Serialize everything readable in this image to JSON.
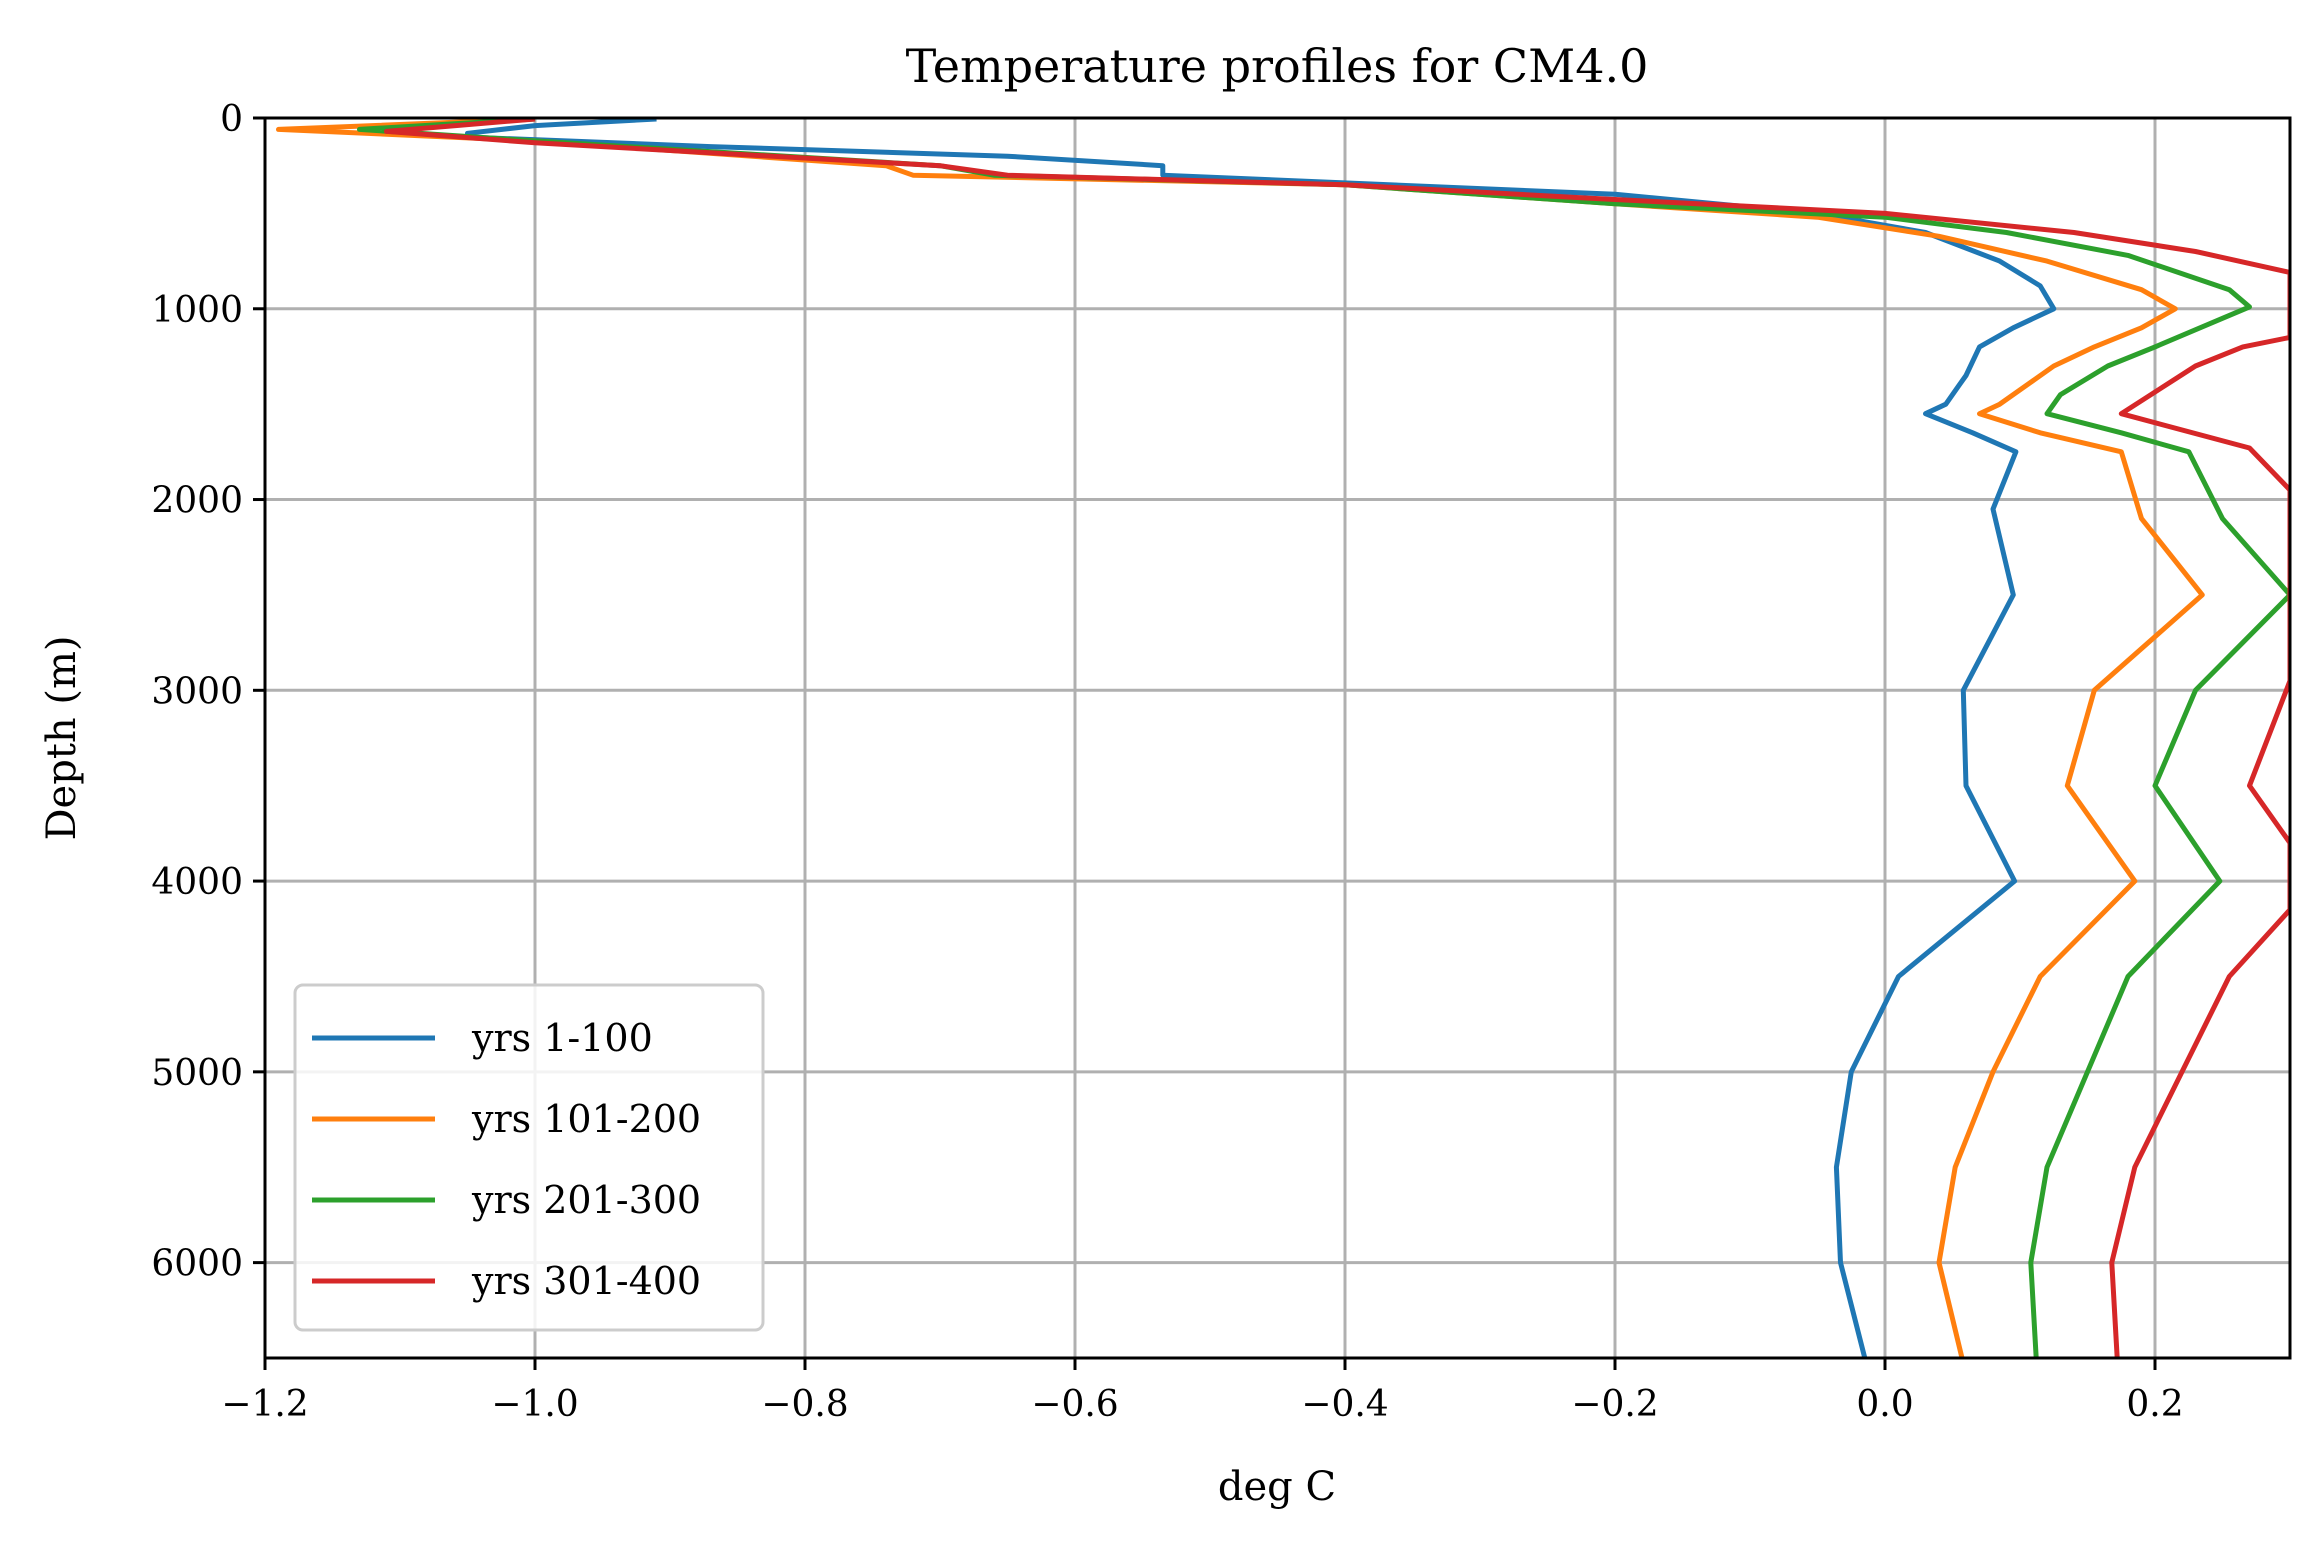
{
  "chart_data": {
    "type": "line",
    "title": "Temperature profiles for CM4.0",
    "xlabel": "deg C",
    "ylabel": "Depth (m)",
    "xlim": [
      -1.2,
      0.3
    ],
    "ylim": [
      6500,
      0
    ],
    "y_inverted": true,
    "grid": true,
    "legend_position": "lower-left",
    "x_ticks": [
      -1.2,
      -1.0,
      -0.8,
      -0.6,
      -0.4,
      -0.2,
      0.0,
      0.2
    ],
    "x_tick_labels": [
      "−1.2",
      "−1.0",
      "−0.8",
      "−0.6",
      "−0.4",
      "−0.2",
      "0.0",
      "0.2"
    ],
    "y_ticks": [
      0,
      1000,
      2000,
      3000,
      4000,
      5000,
      6000
    ],
    "y_tick_labels": [
      "0",
      "1000",
      "2000",
      "3000",
      "4000",
      "5000",
      "6000"
    ],
    "series": [
      {
        "name": "yrs 1-100",
        "color": "#1f77b4",
        "points": [
          [
            -0.91,
            5
          ],
          [
            -1.0,
            40
          ],
          [
            -1.05,
            80
          ],
          [
            -1.05,
            100
          ],
          [
            -0.87,
            150
          ],
          [
            -0.65,
            200
          ],
          [
            -0.535,
            250
          ],
          [
            -0.535,
            300
          ],
          [
            -0.2,
            400
          ],
          [
            -0.05,
            500
          ],
          [
            0.03,
            600
          ],
          [
            0.085,
            750
          ],
          [
            0.115,
            880
          ],
          [
            0.125,
            1000
          ],
          [
            0.095,
            1100
          ],
          [
            0.07,
            1200
          ],
          [
            0.06,
            1350
          ],
          [
            0.055,
            1400
          ],
          [
            0.045,
            1500
          ],
          [
            0.03,
            1550
          ],
          [
            0.065,
            1650
          ],
          [
            0.097,
            1750
          ],
          [
            0.08,
            2050
          ],
          [
            0.095,
            2500
          ],
          [
            0.058,
            3000
          ],
          [
            0.06,
            3500
          ],
          [
            0.096,
            4000
          ],
          [
            0.01,
            4500
          ],
          [
            -0.025,
            5000
          ],
          [
            -0.036,
            5500
          ],
          [
            -0.033,
            6000
          ],
          [
            -0.015,
            6500
          ]
        ]
      },
      {
        "name": "yrs 101-200",
        "color": "#ff7f0e",
        "points": [
          [
            -1.0,
            5
          ],
          [
            -1.19,
            60
          ],
          [
            -1.0,
            120
          ],
          [
            -0.74,
            250
          ],
          [
            -0.72,
            300
          ],
          [
            -0.4,
            350
          ],
          [
            -0.2,
            450
          ],
          [
            -0.05,
            520
          ],
          [
            0.04,
            620
          ],
          [
            0.12,
            750
          ],
          [
            0.19,
            900
          ],
          [
            0.215,
            1000
          ],
          [
            0.19,
            1100
          ],
          [
            0.155,
            1200
          ],
          [
            0.125,
            1300
          ],
          [
            0.085,
            1500
          ],
          [
            0.07,
            1550
          ],
          [
            0.115,
            1650
          ],
          [
            0.175,
            1750
          ],
          [
            0.19,
            2100
          ],
          [
            0.235,
            2500
          ],
          [
            0.155,
            3000
          ],
          [
            0.135,
            3500
          ],
          [
            0.185,
            4000
          ],
          [
            0.115,
            4500
          ],
          [
            0.08,
            5000
          ],
          [
            0.052,
            5500
          ],
          [
            0.04,
            6000
          ],
          [
            0.057,
            6500
          ]
        ]
      },
      {
        "name": "yrs 201-300",
        "color": "#2ca02c",
        "points": [
          [
            -1.0,
            5
          ],
          [
            -1.13,
            60
          ],
          [
            -1.0,
            120
          ],
          [
            -0.7,
            250
          ],
          [
            -0.66,
            300
          ],
          [
            -0.4,
            350
          ],
          [
            -0.2,
            450
          ],
          [
            0.0,
            520
          ],
          [
            0.09,
            600
          ],
          [
            0.18,
            720
          ],
          [
            0.255,
            900
          ],
          [
            0.27,
            990
          ],
          [
            0.25,
            1050
          ],
          [
            0.2,
            1200
          ],
          [
            0.165,
            1300
          ],
          [
            0.13,
            1450
          ],
          [
            0.12,
            1550
          ],
          [
            0.175,
            1650
          ],
          [
            0.225,
            1750
          ],
          [
            0.25,
            2100
          ],
          [
            0.3,
            2500
          ],
          [
            0.23,
            3000
          ],
          [
            0.2,
            3500
          ],
          [
            0.248,
            4000
          ],
          [
            0.18,
            4500
          ],
          [
            0.15,
            5000
          ],
          [
            0.12,
            5500
          ],
          [
            0.108,
            6000
          ],
          [
            0.112,
            6500
          ]
        ]
      },
      {
        "name": "yrs 301-400",
        "color": "#d62728",
        "points": [
          [
            -1.0,
            5
          ],
          [
            -1.11,
            70
          ],
          [
            -1.0,
            130
          ],
          [
            -0.7,
            250
          ],
          [
            -0.65,
            300
          ],
          [
            -0.4,
            350
          ],
          [
            -0.22,
            420
          ],
          [
            0.0,
            500
          ],
          [
            0.14,
            600
          ],
          [
            0.23,
            700
          ],
          [
            0.3,
            810
          ],
          [
            0.3,
            1150
          ],
          [
            0.265,
            1200
          ],
          [
            0.23,
            1300
          ],
          [
            0.175,
            1550
          ],
          [
            0.27,
            1730
          ],
          [
            0.3,
            1950
          ],
          [
            0.3,
            2950
          ],
          [
            0.27,
            3500
          ],
          [
            0.3,
            3800
          ],
          [
            0.3,
            4150
          ],
          [
            0.255,
            4500
          ],
          [
            0.22,
            5000
          ],
          [
            0.185,
            5500
          ],
          [
            0.168,
            6000
          ],
          [
            0.172,
            6500
          ]
        ]
      }
    ]
  }
}
